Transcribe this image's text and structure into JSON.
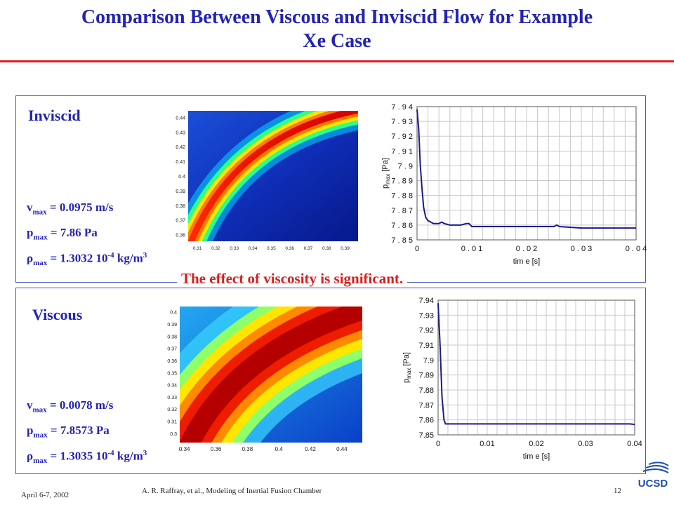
{
  "slide": {
    "title_line1": "Comparison Between Viscous and Inviscid Flow for Example",
    "title_line2": "Xe Case",
    "effect_note": "The effect of viscosity is significant.",
    "footer_date": "April 6-7, 2002",
    "footer_citation": "A. R. Raffray, et al., Modeling of Inertial Fusion Chamber",
    "page_number": "12",
    "logo_text": "UCSD"
  },
  "inviscid": {
    "label": "Inviscid",
    "v_sym": "v",
    "v_val": " = 0.0975 m/s",
    "p_sym": "p",
    "p_val": " = 7.86 Pa",
    "rho_sym": "ρ",
    "rho_val": " = 1.3032 10",
    "rho_exp": "-4",
    "rho_unit": " kg/m",
    "rho_unit_exp": "3"
  },
  "viscous": {
    "label": "Viscous",
    "v_sym": "v",
    "v_val": " = 0.0078 m/s",
    "p_sym": "p",
    "p_val": " = 7.8573 Pa",
    "rho_sym": "ρ",
    "rho_val": " = 1.3035 10",
    "rho_exp": "-4",
    "rho_unit": " kg/m",
    "rho_unit_exp": "3"
  },
  "sub_max": "max",
  "colors": {
    "title": "#2323b4",
    "accent_red": "#d81e1e",
    "series": "#1a1a8c"
  },
  "chart_data": [
    {
      "type": "heatmap",
      "panel": "inviscid",
      "x_ticks": [
        "0.31",
        "0.32",
        "0.33",
        "0.34",
        "0.35",
        "0.36",
        "0.37",
        "0.38",
        "0.39"
      ],
      "y_ticks": [
        "0.36",
        "0.37",
        "0.38",
        "0.39",
        "0.4",
        "0.41",
        "0.42",
        "0.43",
        "0.44"
      ],
      "xlim": [
        0.305,
        0.397
      ],
      "ylim": [
        0.356,
        0.445
      ]
    },
    {
      "type": "line",
      "panel": "inviscid",
      "xlabel": "tim e [s]",
      "ylabel": "p",
      "ylabel_sub": "max",
      "ylabel_unit": "[Pa]",
      "xlim": [
        0,
        0.04
      ],
      "ylim": [
        7.85,
        7.94
      ],
      "x_ticks": [
        0,
        0.01,
        0.02,
        0.03,
        0.04
      ],
      "x_tick_labels": [
        "0",
        "0 . 0 1",
        "0 . 0 2",
        "0 . 0 3",
        "0 . 0 4"
      ],
      "y_ticks": [
        7.85,
        7.86,
        7.87,
        7.88,
        7.89,
        7.9,
        7.91,
        7.92,
        7.93,
        7.94
      ],
      "y_tick_labels": [
        "7 . 8 5",
        "7 . 8 6",
        "7 . 8 7",
        "7 . 8 8",
        "7 . 8 9",
        "7 . 9",
        "7 . 9 1",
        "7 . 9 2",
        "7 . 9 3",
        "7 . 9 4"
      ],
      "grid": true,
      "series": [
        {
          "values": [
            [
              0,
              7.938
            ],
            [
              0.0003,
              7.925
            ],
            [
              0.0006,
              7.9
            ],
            [
              0.0009,
              7.885
            ],
            [
              0.0012,
              7.872
            ],
            [
              0.0016,
              7.865
            ],
            [
              0.002,
              7.863
            ],
            [
              0.0025,
              7.862
            ],
            [
              0.003,
              7.861
            ],
            [
              0.004,
              7.861
            ],
            [
              0.0045,
              7.862
            ],
            [
              0.005,
              7.861
            ],
            [
              0.006,
              7.86
            ],
            [
              0.008,
              7.86
            ],
            [
              0.009,
              7.861
            ],
            [
              0.0095,
              7.861
            ],
            [
              0.01,
              7.859
            ],
            [
              0.012,
              7.859
            ],
            [
              0.015,
              7.859
            ],
            [
              0.02,
              7.859
            ],
            [
              0.025,
              7.859
            ],
            [
              0.0255,
              7.86
            ],
            [
              0.026,
              7.859
            ],
            [
              0.03,
              7.858
            ],
            [
              0.035,
              7.858
            ],
            [
              0.04,
              7.858
            ]
          ]
        }
      ]
    },
    {
      "type": "heatmap",
      "panel": "viscous",
      "x_ticks": [
        "0.34",
        "0.36",
        "0.38",
        "0.4",
        "0.42",
        "0.44"
      ],
      "y_ticks": [
        "0.3",
        "0.31",
        "0.32",
        "0.33",
        "0.34",
        "0.35",
        "0.36",
        "0.37",
        "0.38",
        "0.39",
        "0.4"
      ],
      "xlim": [
        0.337,
        0.453
      ],
      "ylim": [
        0.293,
        0.405
      ]
    },
    {
      "type": "line",
      "panel": "viscous",
      "xlabel": "tim e [s]",
      "ylabel": "p",
      "ylabel_sub": "max",
      "ylabel_unit": "[Pa]",
      "xlim": [
        0,
        0.04
      ],
      "ylim": [
        7.85,
        7.94
      ],
      "x_ticks": [
        0,
        0.01,
        0.02,
        0.03,
        0.04
      ],
      "x_tick_labels": [
        "0",
        "0.01",
        "0.02",
        "0.03",
        "0.04"
      ],
      "y_ticks": [
        7.85,
        7.86,
        7.87,
        7.88,
        7.89,
        7.9,
        7.91,
        7.92,
        7.93,
        7.94
      ],
      "y_tick_labels": [
        "7.85",
        "7.86",
        "7.87",
        "7.88",
        "7.89",
        "7.9",
        "7.91",
        "7.92",
        "7.93",
        "7.94"
      ],
      "grid": true,
      "series": [
        {
          "values": [
            [
              0,
              7.938
            ],
            [
              0.0004,
              7.91
            ],
            [
              0.0008,
              7.875
            ],
            [
              0.0012,
              7.86
            ],
            [
              0.0015,
              7.8573
            ],
            [
              0.005,
              7.8573
            ],
            [
              0.01,
              7.8573
            ],
            [
              0.02,
              7.8573
            ],
            [
              0.03,
              7.8573
            ],
            [
              0.039,
              7.8573
            ],
            [
              0.04,
              7.857
            ]
          ]
        }
      ]
    }
  ]
}
